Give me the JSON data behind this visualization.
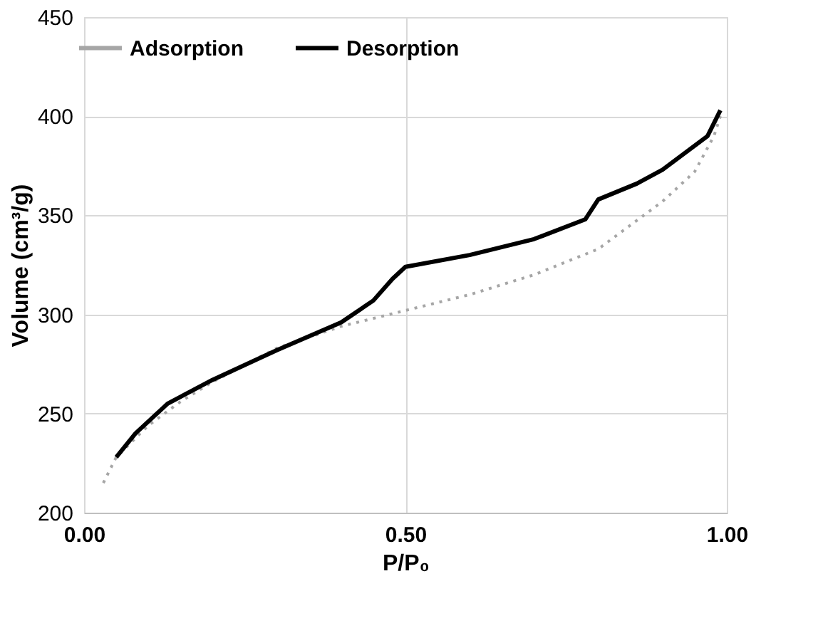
{
  "chart_data": {
    "type": "line",
    "xlabel": "P/P₀",
    "ylabel": "Volume (cm³/g)",
    "xlim": [
      0,
      1
    ],
    "xticks": [
      {
        "value": 0,
        "label": "0.00"
      },
      {
        "value": 0.5,
        "label": "0.50"
      },
      {
        "value": 1,
        "label": "1.00"
      }
    ],
    "ylim": [
      200,
      450
    ],
    "yticks": [
      200,
      250,
      300,
      350,
      400,
      450
    ],
    "grid": true,
    "legend": "top",
    "marker": "none",
    "series": [
      {
        "name": "Adsorption",
        "color": "#a6a6a6",
        "line_style": "dotted",
        "x": [
          0.03,
          0.05,
          0.1,
          0.15,
          0.2,
          0.3,
          0.4,
          0.5,
          0.6,
          0.7,
          0.8,
          0.85,
          0.9,
          0.95,
          0.98,
          0.99
        ],
        "values": [
          215,
          228,
          244,
          256,
          266,
          283,
          294,
          302,
          310,
          320,
          333,
          345,
          357,
          372,
          390,
          400
        ]
      },
      {
        "name": "Desorption",
        "color": "#000000",
        "line_style": "solid",
        "x": [
          0.05,
          0.08,
          0.13,
          0.2,
          0.3,
          0.4,
          0.45,
          0.48,
          0.5,
          0.6,
          0.7,
          0.78,
          0.8,
          0.86,
          0.9,
          0.97,
          0.99
        ],
        "values": [
          228,
          240,
          255,
          267,
          282,
          296,
          307,
          318,
          324,
          330,
          338,
          348,
          358,
          366,
          373,
          390,
          403
        ]
      }
    ]
  }
}
